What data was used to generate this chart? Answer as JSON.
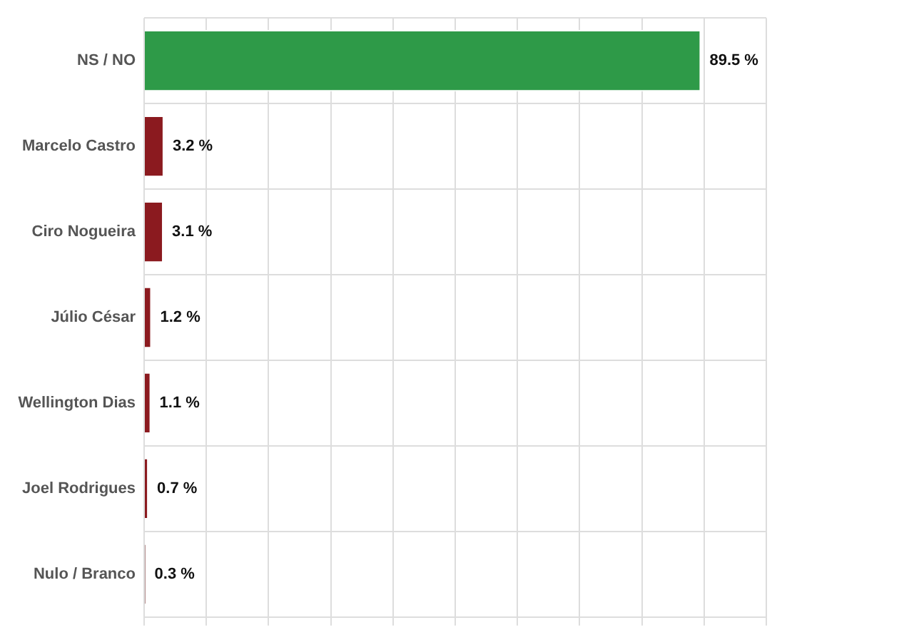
{
  "chart_data": {
    "type": "bar",
    "orientation": "horizontal",
    "categories": [
      "NS / NO",
      "Marcelo Castro",
      "Ciro Nogueira",
      "Júlio César",
      "Wellington Dias",
      "Joel Rodrigues",
      "Nulo / Branco"
    ],
    "values": [
      89.5,
      3.2,
      3.1,
      1.2,
      1.1,
      0.7,
      0.3
    ],
    "colors": [
      "#2e9a48",
      "#8b1a1f",
      "#8b1a1f",
      "#8b1a1f",
      "#8b1a1f",
      "#8b1a1f",
      "#a07070"
    ],
    "value_labels": [
      "89.5 %",
      "3.2 %",
      "3.1 %",
      "1.2 %",
      "1.1 %",
      "0.7 %",
      "0.3 %"
    ],
    "xlim": [
      0,
      100
    ],
    "xticks": [
      {
        "value": 0,
        "label": null
      },
      {
        "value": 10,
        "label": null
      },
      {
        "value": 20,
        "label": null
      },
      {
        "value": 30,
        "label": null
      },
      {
        "value": 40,
        "label": null
      },
      {
        "value": 50,
        "label": null
      },
      {
        "value": 60,
        "label": null
      },
      {
        "value": 70,
        "label": null
      },
      {
        "value": 80,
        "label": null
      },
      {
        "value": 90,
        "label": null
      },
      {
        "value": 100,
        "label": null
      }
    ],
    "tick_labels": "y",
    "grid": true,
    "legend": false
  }
}
